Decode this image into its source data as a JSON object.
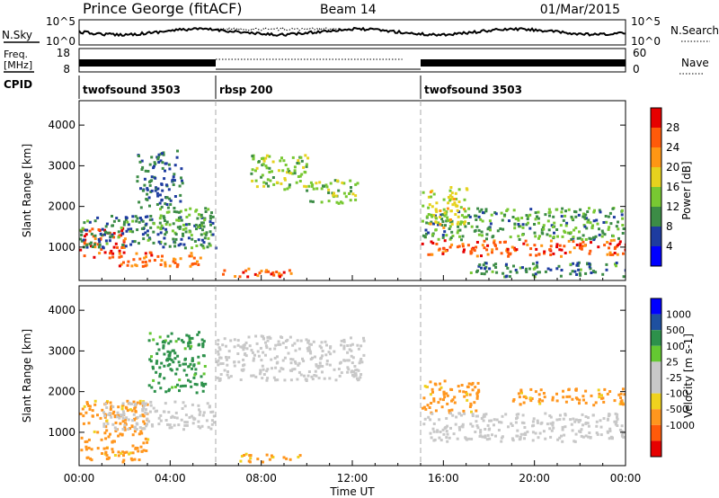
{
  "header": {
    "station": "Prince George (fitACF)",
    "beam": "Beam 14",
    "date": "01/Mar/2015"
  },
  "noise_panel": {
    "left_label": "N.Sky",
    "left_ticks": [
      "10^5",
      "10^0"
    ],
    "right_ticks": [
      "10^5",
      "10^0"
    ],
    "right_label": "N.Search"
  },
  "freq_panel": {
    "left_label_1": "Freq.",
    "left_label_2": "[MHz]",
    "left_ticks": [
      "18",
      "8"
    ],
    "right_ticks": [
      "60",
      "0"
    ],
    "right_label": "Nave"
  },
  "cpid_panel": {
    "label": "CPID",
    "segments": [
      {
        "name": "twofsound 3503",
        "start_h": 0,
        "end_h": 6
      },
      {
        "name": "rbsp 200",
        "start_h": 6,
        "end_h": 15
      },
      {
        "name": "twofsound 3503",
        "start_h": 15,
        "end_h": 24
      }
    ]
  },
  "x_axis": {
    "label": "Time UT",
    "ticks": [
      "00:00",
      "04:00",
      "08:00",
      "12:00",
      "16:00",
      "20:00",
      "00:00"
    ],
    "range_h": [
      0,
      24
    ]
  },
  "colors": {
    "power_scale": [
      "#0000ff",
      "#1e3ca0",
      "#3c8c46",
      "#78c832",
      "#e6d21e",
      "#ff9614",
      "#ff5a0a",
      "#e60000"
    ],
    "velocity_scale": [
      "#0000ff",
      "#1e50a0",
      "#2d914b",
      "#64c832",
      "#c8c8c8",
      "#c8c8c8",
      "#f0d21e",
      "#ff961e",
      "#ff5a0a",
      "#e60000"
    ]
  },
  "chart_data": [
    {
      "type": "heatmap",
      "quantity": "power",
      "ylabel": "Slant Range [km]",
      "y_ticks": [
        1000,
        2000,
        3000,
        4000
      ],
      "ylim": [
        180,
        4600
      ],
      "colorbar": {
        "label": "Power [dB]",
        "ticks": [
          4,
          8,
          12,
          16,
          20,
          24,
          28
        ],
        "range": [
          0,
          32
        ]
      },
      "regions": [
        {
          "t0": 0.0,
          "t1": 2.0,
          "r0": 750,
          "r1": 1500,
          "value": 27
        },
        {
          "t0": 0.0,
          "t1": 6.0,
          "r0": 1000,
          "r1": 1800,
          "value": 9
        },
        {
          "t0": 1.5,
          "t1": 5.5,
          "r0": 550,
          "r1": 900,
          "value": 25
        },
        {
          "t0": 3.5,
          "t1": 5.8,
          "r0": 1300,
          "r1": 2000,
          "value": 12
        },
        {
          "t0": 2.5,
          "t1": 4.5,
          "r0": 2000,
          "r1": 3400,
          "value": 8
        },
        {
          "t0": 6.0,
          "t1": 9.5,
          "r0": 300,
          "r1": 500,
          "value": 26
        },
        {
          "t0": 7.5,
          "t1": 10.0,
          "r0": 2400,
          "r1": 3300,
          "value": 14
        },
        {
          "t0": 10.0,
          "t1": 12.2,
          "r0": 2100,
          "r1": 2700,
          "value": 14
        },
        {
          "t0": 15.0,
          "t1": 24.0,
          "r0": 800,
          "r1": 1200,
          "value": 26
        },
        {
          "t0": 15.0,
          "t1": 24.0,
          "r0": 1200,
          "r1": 2000,
          "value": 11
        },
        {
          "t0": 15.0,
          "t1": 17.0,
          "r0": 1500,
          "r1": 2500,
          "value": 17
        },
        {
          "t0": 17.0,
          "t1": 24.0,
          "r0": 300,
          "r1": 650,
          "value": 9
        }
      ]
    },
    {
      "type": "heatmap",
      "quantity": "velocity",
      "ylabel": "Slant Range [km]",
      "y_ticks": [
        1000,
        2000,
        3000,
        4000
      ],
      "ylim": [
        180,
        4600
      ],
      "colorbar": {
        "label": "Velocity [m s-1]",
        "ticks": [
          "1000",
          "500",
          "100",
          "25",
          "-25",
          "-100",
          "-500",
          "-1000"
        ]
      },
      "regions": [
        {
          "t0": 0.0,
          "t1": 3.0,
          "r0": 300,
          "r1": 1800,
          "value": -200
        },
        {
          "t0": 1.0,
          "t1": 6.0,
          "r0": 1100,
          "r1": 1800,
          "value": 0
        },
        {
          "t0": 3.0,
          "t1": 5.5,
          "r0": 2000,
          "r1": 3500,
          "value": 200
        },
        {
          "t0": 6.0,
          "t1": 12.5,
          "r0": 2300,
          "r1": 3400,
          "value": 0
        },
        {
          "t0": 7.0,
          "t1": 10.0,
          "r0": 300,
          "r1": 500,
          "value": -150
        },
        {
          "t0": 15.0,
          "t1": 17.5,
          "r0": 1500,
          "r1": 2300,
          "value": -200
        },
        {
          "t0": 15.0,
          "t1": 24.0,
          "r0": 800,
          "r1": 1500,
          "value": 0
        },
        {
          "t0": 19.0,
          "t1": 24.0,
          "r0": 1700,
          "r1": 2100,
          "value": -200
        }
      ]
    }
  ]
}
